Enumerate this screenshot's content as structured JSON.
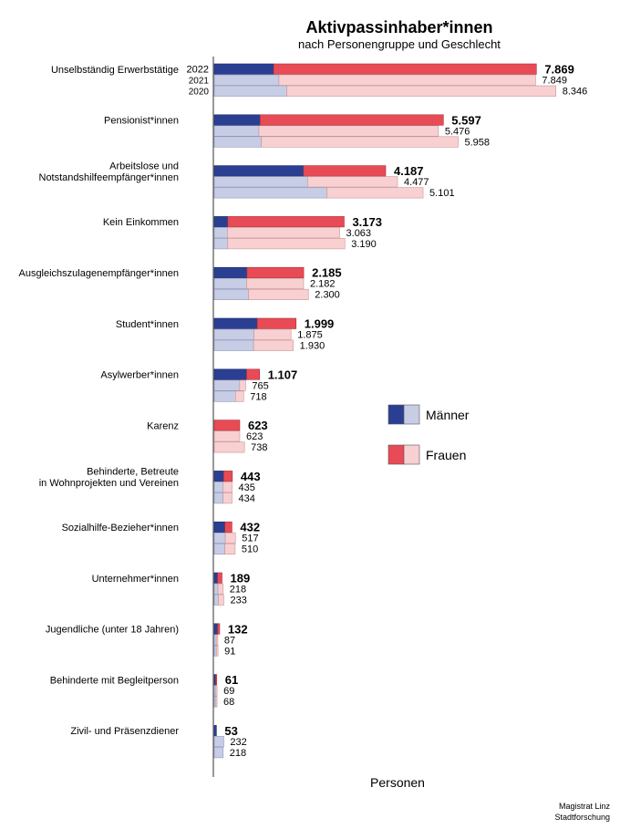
{
  "chart_data": {
    "type": "bar",
    "orientation": "horizontal",
    "stacked": true,
    "title": "Aktivpassinhaber*innen",
    "subtitle": "nach Personengruppe und Geschlecht",
    "xlabel": "Personen",
    "years": [
      "2022",
      "2021",
      "2020"
    ],
    "legend_position": "right",
    "series": [
      {
        "name": "Männer",
        "colors": [
          "#2b3f92",
          "#c8cde6"
        ]
      },
      {
        "name": "Frauen",
        "colors": [
          "#e84b55",
          "#f8d0d2"
        ]
      }
    ],
    "categories": [
      {
        "label": [
          "Unselbständig Erwerbstätige"
        ],
        "years_shown": true,
        "totals": [
          "7.869",
          "7.849",
          "8.346"
        ],
        "maenner": [
          1450,
          1580,
          1770
        ]
      },
      {
        "label": [
          "Pensionist*innen"
        ],
        "totals": [
          "5.597",
          "5.476",
          "5.958"
        ],
        "maenner": [
          1120,
          1090,
          1150
        ]
      },
      {
        "label": [
          "Arbeitslose und",
          "Notstandshilfeempfänger*innen"
        ],
        "totals": [
          "4.187",
          "4.477",
          "5.101"
        ],
        "maenner": [
          2180,
          2280,
          2750
        ]
      },
      {
        "label": [
          "Kein Einkommen"
        ],
        "totals": [
          "3.173",
          "3.063",
          "3.190"
        ],
        "maenner": [
          330,
          320,
          330
        ]
      },
      {
        "label": [
          "Ausgleichszulagenempfänger*innen"
        ],
        "totals": [
          "2.185",
          "2.182",
          "2.300"
        ],
        "maenner": [
          800,
          790,
          840
        ]
      },
      {
        "label": [
          "Student*innen"
        ],
        "totals": [
          "1.999",
          "1.875",
          "1.930"
        ],
        "maenner": [
          1050,
          970,
          960
        ]
      },
      {
        "label": [
          "Asylwerber*innen"
        ],
        "totals": [
          "1.107",
          "765",
          "718"
        ],
        "maenner": [
          790,
          620,
          520
        ]
      },
      {
        "label": [
          "Karenz"
        ],
        "totals": [
          "623",
          "623",
          "738"
        ],
        "maenner": [
          0,
          0,
          0
        ]
      },
      {
        "label": [
          "Behinderte, Betreute",
          "in Wohnprojekten und Vereinen"
        ],
        "totals": [
          "443",
          "435",
          "434"
        ],
        "maenner": [
          230,
          220,
          215
        ]
      },
      {
        "label": [
          "Sozialhilfe-Bezieher*innen"
        ],
        "totals": [
          "432",
          "517",
          "510"
        ],
        "maenner": [
          260,
          270,
          260
        ]
      },
      {
        "label": [
          "Unternehmer*innen"
        ],
        "totals": [
          "189",
          "218",
          "233"
        ],
        "maenner": [
          80,
          90,
          100
        ]
      },
      {
        "label": [
          "Jugendliche (unter 18 Jahren)"
        ],
        "totals": [
          "132",
          "87",
          "91"
        ],
        "maenner": [
          80,
          50,
          50
        ]
      },
      {
        "label": [
          "Behinderte mit Begleitperson"
        ],
        "totals": [
          "61",
          "69",
          "68"
        ],
        "maenner": [
          35,
          40,
          40
        ]
      },
      {
        "label": [
          "Zivil- und Präsenzdiener"
        ],
        "totals": [
          "53",
          "232",
          "218"
        ],
        "maenner": [
          53,
          232,
          218
        ]
      }
    ]
  },
  "footer": {
    "line1": "Magistrat Linz",
    "line2": "Stadtforschung"
  }
}
